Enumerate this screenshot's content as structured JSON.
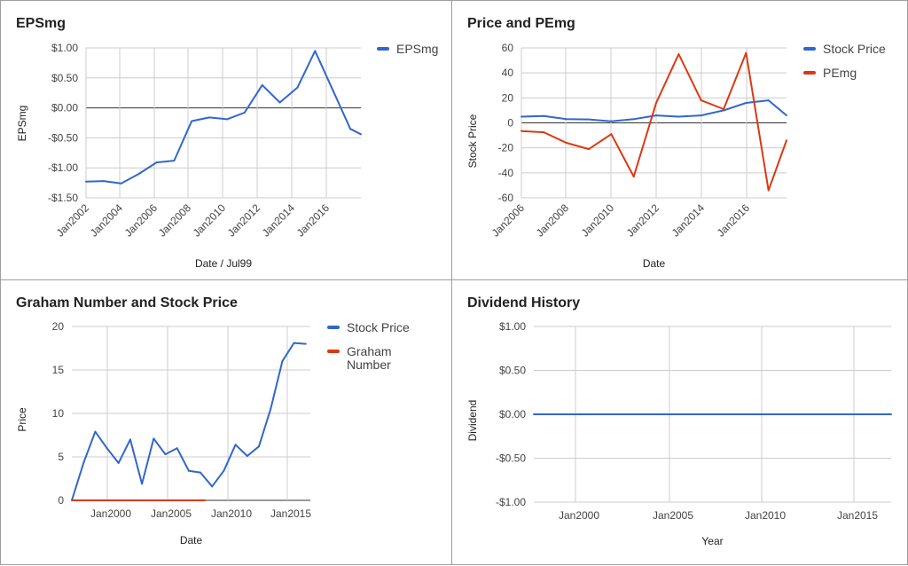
{
  "chart_data": [
    {
      "type": "line",
      "title": "EPSmg",
      "xlabel": "Date / Jul99",
      "ylabel": "EPSmg",
      "x_tick_labels": [
        "Jan2002",
        "Jan2004",
        "Jan2006",
        "Jan2008",
        "Jan2010",
        "Jan2012",
        "Jan2014",
        "Jan2016"
      ],
      "y_ticks": [
        1.0,
        0.5,
        0.0,
        -0.5,
        -1.0,
        -1.5
      ],
      "y_tick_labels": [
        "$1.00",
        "$0.50",
        "$0.00",
        "-$0.50",
        "-$1.00",
        "-$1.50"
      ],
      "xlim": [
        2002,
        2017.6
      ],
      "ylim": [
        -1.5,
        1.0
      ],
      "grid": true,
      "legend_position": "right",
      "series": [
        {
          "name": "EPSmg",
          "color": "#3366cc",
          "x": [
            2002,
            2003,
            2004,
            2005,
            2006,
            2007,
            2008,
            2009,
            2010,
            2011,
            2012,
            2013,
            2014,
            2015,
            2016,
            2017,
            2017.6
          ],
          "y": [
            -1.23,
            -1.22,
            -1.26,
            -1.1,
            -0.91,
            -0.88,
            -0.22,
            -0.16,
            -0.19,
            -0.08,
            0.38,
            0.09,
            0.34,
            0.95,
            0.3,
            -0.35,
            -0.44
          ]
        }
      ]
    },
    {
      "type": "line",
      "title": "Price and PEmg",
      "xlabel": "Date",
      "ylabel": "Stock Price",
      "x_tick_labels": [
        "Jan2006",
        "Jan2008",
        "Jan2010",
        "Jan2012",
        "Jan2014",
        "Jan2016"
      ],
      "y_ticks": [
        60,
        40,
        20,
        0,
        -20,
        -40,
        -60
      ],
      "y_tick_labels": [
        "60",
        "40",
        "20",
        "0",
        "-20",
        "-40",
        "-60"
      ],
      "xlim": [
        2006,
        2017.8
      ],
      "ylim": [
        -60,
        60
      ],
      "grid": true,
      "legend_position": "right",
      "series": [
        {
          "name": "Stock Price",
          "color": "#3366cc",
          "x": [
            2006,
            2007,
            2008,
            2009,
            2010,
            2011,
            2012,
            2013,
            2014,
            2015,
            2016,
            2017,
            2017.8
          ],
          "y": [
            5,
            5.5,
            3,
            2.8,
            1.3,
            3,
            6,
            5,
            6,
            10,
            16,
            18,
            6
          ]
        },
        {
          "name": "PEmg",
          "color": "#dc3912",
          "x": [
            2006,
            2007,
            2008,
            2009,
            2010,
            2011,
            2012,
            2013,
            2014,
            2015,
            2016,
            2017,
            2017.8
          ],
          "y": [
            -6.5,
            -7.5,
            -16,
            -21,
            -9,
            -43,
            16,
            55,
            18,
            11,
            56,
            -54,
            -14
          ]
        }
      ]
    },
    {
      "type": "line",
      "title": "Graham Number and Stock Price",
      "xlabel": "Date",
      "ylabel": "Price",
      "x_tick_labels": [
        "Jan2000",
        "Jan2005",
        "Jan2010",
        "Jan2015"
      ],
      "y_ticks": [
        20,
        15,
        10,
        5,
        0
      ],
      "y_tick_labels": [
        "20",
        "15",
        "10",
        "5",
        "0"
      ],
      "xlim": [
        1996.6,
        2017
      ],
      "ylim": [
        0,
        20
      ],
      "grid": true,
      "legend_position": "right",
      "series": [
        {
          "name": "Stock Price",
          "color": "#3366cc",
          "x": [
            1996.6,
            1997.6,
            1998.6,
            1999.6,
            2000.6,
            2001.6,
            2002.6,
            2003.6,
            2004.6,
            2005.6,
            2006.6,
            2007.6,
            2008.6,
            2009.6,
            2010.6,
            2011.6,
            2012.6,
            2013.6,
            2014.6,
            2015.6,
            2016.6
          ],
          "y": [
            0,
            4.3,
            7.9,
            6,
            4.3,
            7,
            1.9,
            7.1,
            5.3,
            6,
            3.4,
            3.2,
            1.6,
            3.4,
            6.4,
            5.1,
            6.2,
            10.5,
            16,
            18.1,
            18
          ]
        },
        {
          "name": "Graham Number",
          "color": "#dc3912",
          "x": [
            1996.6,
            2008.0
          ],
          "y": [
            0,
            0
          ]
        }
      ]
    },
    {
      "type": "line",
      "title": "Dividend History",
      "xlabel": "Year",
      "ylabel": "Dividend",
      "x_tick_labels": [
        "Jan2000",
        "Jan2005",
        "Jan2010",
        "Jan2015"
      ],
      "y_ticks": [
        1.0,
        0.5,
        0.0,
        -0.5,
        -1.0
      ],
      "y_tick_labels": [
        "$1.00",
        "$0.50",
        "$0.00",
        "-$0.50",
        "-$1.00"
      ],
      "xlim": [
        1997.7,
        2017
      ],
      "ylim": [
        -1.0,
        1.0
      ],
      "grid": true,
      "legend_position": "none",
      "series": [
        {
          "color": "#3366cc",
          "x": [
            1997.7,
            2017
          ],
          "y": [
            0,
            0
          ]
        }
      ]
    }
  ]
}
